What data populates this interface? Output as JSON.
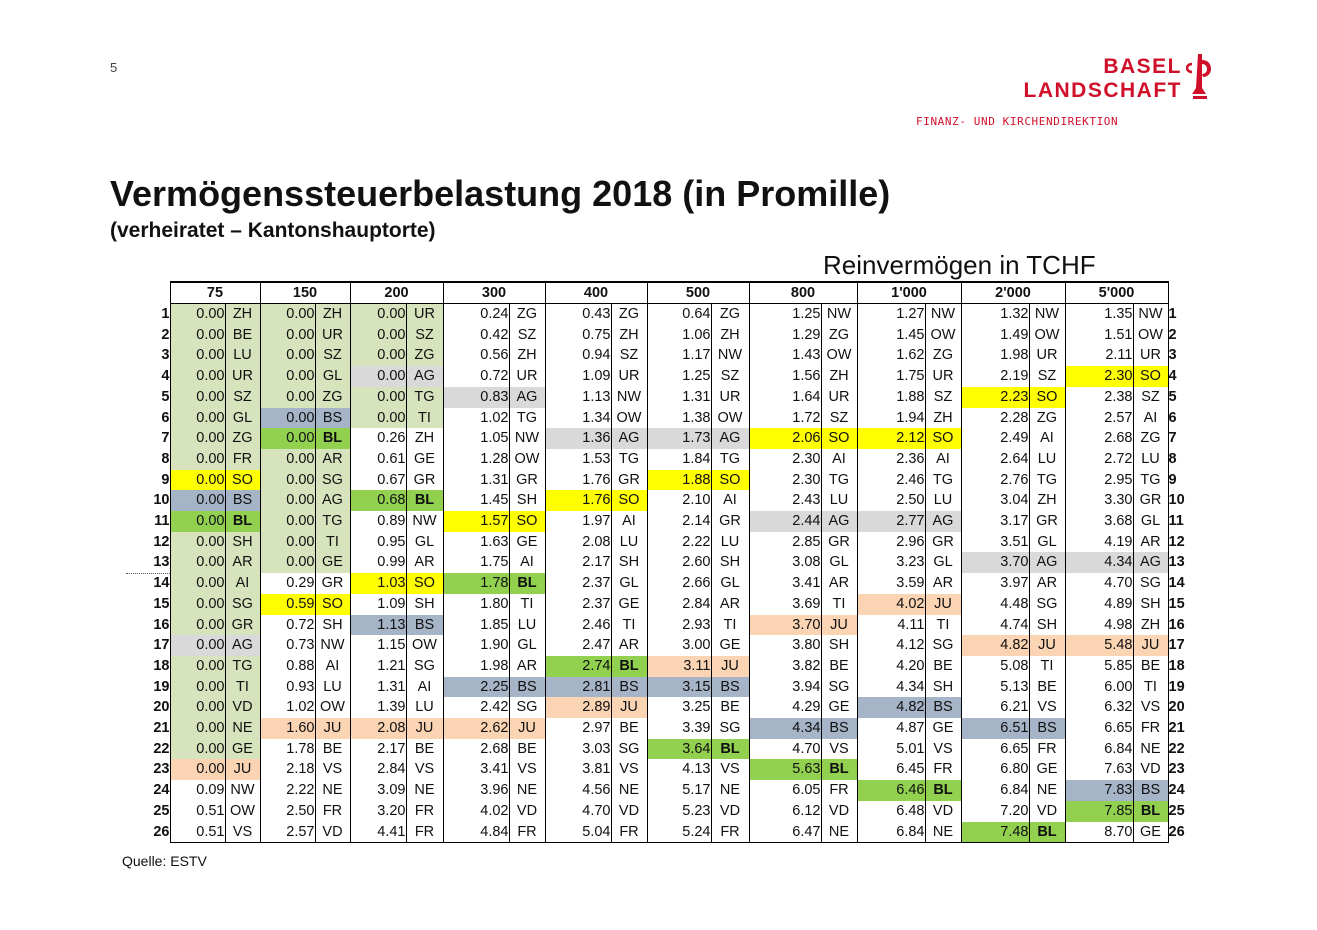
{
  "page_number": "5",
  "logo": {
    "line1": "BASEL",
    "line2": "LANDSCHAFT",
    "sub": "FINANZ- UND KIRCHENDIREKTION"
  },
  "title": "Vermögenssteuerbelastung 2018 (in Promille)",
  "subtitle": "(verheiratet – Kantonshauptorte)",
  "column_group_label": "Reinvermögen in TCHF",
  "source": "Quelle: ESTV",
  "colors": {
    "green_light": "#d6e3bc",
    "green": "#92d050",
    "grey": "#d9d9d9",
    "blue_grey": "#a6b4c8",
    "yellow": "#ffff00",
    "orange": "#fbd4b4",
    "brand_red": "#d0102a"
  },
  "chart_data": {
    "type": "table",
    "columns": [
      "75",
      "150",
      "200",
      "300",
      "400",
      "500",
      "800",
      "1'000",
      "2'000",
      "5'000"
    ],
    "rows": [
      [
        [
          "0.00",
          "ZH",
          "gl"
        ],
        [
          "0.00",
          "ZH",
          "gl"
        ],
        [
          "0.00",
          "UR",
          "gl"
        ],
        [
          "0.24",
          "ZG",
          ""
        ],
        [
          "0.43",
          "ZG",
          ""
        ],
        [
          "0.64",
          "ZG",
          ""
        ],
        [
          "1.25",
          "NW",
          ""
        ],
        [
          "1.27",
          "NW",
          ""
        ],
        [
          "1.32",
          "NW",
          ""
        ],
        [
          "1.35",
          "NW",
          ""
        ]
      ],
      [
        [
          "0.00",
          "BE",
          "gl"
        ],
        [
          "0.00",
          "UR",
          "gl"
        ],
        [
          "0.00",
          "SZ",
          "gl"
        ],
        [
          "0.42",
          "SZ",
          ""
        ],
        [
          "0.75",
          "ZH",
          ""
        ],
        [
          "1.06",
          "ZH",
          ""
        ],
        [
          "1.29",
          "ZG",
          ""
        ],
        [
          "1.45",
          "OW",
          ""
        ],
        [
          "1.49",
          "OW",
          ""
        ],
        [
          "1.51",
          "OW",
          ""
        ]
      ],
      [
        [
          "0.00",
          "LU",
          "gl"
        ],
        [
          "0.00",
          "SZ",
          "gl"
        ],
        [
          "0.00",
          "ZG",
          "gl"
        ],
        [
          "0.56",
          "ZH",
          ""
        ],
        [
          "0.94",
          "SZ",
          ""
        ],
        [
          "1.17",
          "NW",
          ""
        ],
        [
          "1.43",
          "OW",
          ""
        ],
        [
          "1.62",
          "ZG",
          ""
        ],
        [
          "1.98",
          "UR",
          ""
        ],
        [
          "2.11",
          "UR",
          ""
        ]
      ],
      [
        [
          "0.00",
          "UR",
          "gl"
        ],
        [
          "0.00",
          "GL",
          "gl"
        ],
        [
          "0.00",
          "AG",
          "gr"
        ],
        [
          "0.72",
          "UR",
          ""
        ],
        [
          "1.09",
          "UR",
          ""
        ],
        [
          "1.25",
          "SZ",
          ""
        ],
        [
          "1.56",
          "ZH",
          ""
        ],
        [
          "1.75",
          "UR",
          ""
        ],
        [
          "2.19",
          "SZ",
          ""
        ],
        [
          "2.30",
          "SO",
          "y"
        ]
      ],
      [
        [
          "0.00",
          "SZ",
          "gl"
        ],
        [
          "0.00",
          "ZG",
          "gl"
        ],
        [
          "0.00",
          "TG",
          "gl"
        ],
        [
          "0.83",
          "AG",
          "gr"
        ],
        [
          "1.13",
          "NW",
          ""
        ],
        [
          "1.31",
          "UR",
          ""
        ],
        [
          "1.64",
          "UR",
          ""
        ],
        [
          "1.88",
          "SZ",
          ""
        ],
        [
          "2.23",
          "SO",
          "y"
        ],
        [
          "2.38",
          "SZ",
          ""
        ]
      ],
      [
        [
          "0.00",
          "GL",
          "gl"
        ],
        [
          "0.00",
          "BS",
          "b"
        ],
        [
          "0.00",
          "TI",
          "gl"
        ],
        [
          "1.02",
          "TG",
          ""
        ],
        [
          "1.34",
          "OW",
          ""
        ],
        [
          "1.38",
          "OW",
          ""
        ],
        [
          "1.72",
          "SZ",
          ""
        ],
        [
          "1.94",
          "ZH",
          ""
        ],
        [
          "2.28",
          "ZG",
          ""
        ],
        [
          "2.57",
          "AI",
          ""
        ]
      ],
      [
        [
          "0.00",
          "ZG",
          "gl"
        ],
        [
          "0.00",
          "BL",
          "g"
        ],
        [
          "0.26",
          "ZH",
          ""
        ],
        [
          "1.05",
          "NW",
          ""
        ],
        [
          "1.36",
          "AG",
          "gr"
        ],
        [
          "1.73",
          "AG",
          "gr"
        ],
        [
          "2.06",
          "SO",
          "y"
        ],
        [
          "2.12",
          "SO",
          "y"
        ],
        [
          "2.49",
          "AI",
          ""
        ],
        [
          "2.68",
          "ZG",
          ""
        ]
      ],
      [
        [
          "0.00",
          "FR",
          "gl"
        ],
        [
          "0.00",
          "AR",
          "gl"
        ],
        [
          "0.61",
          "GE",
          ""
        ],
        [
          "1.28",
          "OW",
          ""
        ],
        [
          "1.53",
          "TG",
          ""
        ],
        [
          "1.84",
          "TG",
          ""
        ],
        [
          "2.30",
          "AI",
          ""
        ],
        [
          "2.36",
          "AI",
          ""
        ],
        [
          "2.64",
          "LU",
          ""
        ],
        [
          "2.72",
          "LU",
          ""
        ]
      ],
      [
        [
          "0.00",
          "SO",
          "y"
        ],
        [
          "0.00",
          "SG",
          "gl"
        ],
        [
          "0.67",
          "GR",
          ""
        ],
        [
          "1.31",
          "GR",
          ""
        ],
        [
          "1.76",
          "GR",
          ""
        ],
        [
          "1.88",
          "SO",
          "y"
        ],
        [
          "2.30",
          "TG",
          ""
        ],
        [
          "2.46",
          "TG",
          ""
        ],
        [
          "2.76",
          "TG",
          ""
        ],
        [
          "2.95",
          "TG",
          ""
        ]
      ],
      [
        [
          "0.00",
          "BS",
          "b"
        ],
        [
          "0.00",
          "AG",
          "gl"
        ],
        [
          "0.68",
          "BL",
          "g"
        ],
        [
          "1.45",
          "SH",
          ""
        ],
        [
          "1.76",
          "SO",
          "y"
        ],
        [
          "2.10",
          "AI",
          ""
        ],
        [
          "2.43",
          "LU",
          ""
        ],
        [
          "2.50",
          "LU",
          ""
        ],
        [
          "3.04",
          "ZH",
          ""
        ],
        [
          "3.30",
          "GR",
          ""
        ]
      ],
      [
        [
          "0.00",
          "BL",
          "g"
        ],
        [
          "0.00",
          "TG",
          "gl"
        ],
        [
          "0.89",
          "NW",
          ""
        ],
        [
          "1.57",
          "SO",
          "y"
        ],
        [
          "1.97",
          "AI",
          ""
        ],
        [
          "2.14",
          "GR",
          ""
        ],
        [
          "2.44",
          "AG",
          "gr"
        ],
        [
          "2.77",
          "AG",
          "gr"
        ],
        [
          "3.17",
          "GR",
          ""
        ],
        [
          "3.68",
          "GL",
          ""
        ]
      ],
      [
        [
          "0.00",
          "SH",
          "gl"
        ],
        [
          "0.00",
          "TI",
          "gl"
        ],
        [
          "0.95",
          "GL",
          ""
        ],
        [
          "1.63",
          "GE",
          ""
        ],
        [
          "2.08",
          "LU",
          ""
        ],
        [
          "2.22",
          "LU",
          ""
        ],
        [
          "2.85",
          "GR",
          ""
        ],
        [
          "2.96",
          "GR",
          ""
        ],
        [
          "3.51",
          "GL",
          ""
        ],
        [
          "4.19",
          "AR",
          ""
        ]
      ],
      [
        [
          "0.00",
          "AR",
          "gl"
        ],
        [
          "0.00",
          "GE",
          "gl"
        ],
        [
          "0.99",
          "AR",
          ""
        ],
        [
          "1.75",
          "AI",
          ""
        ],
        [
          "2.17",
          "SH",
          ""
        ],
        [
          "2.60",
          "SH",
          ""
        ],
        [
          "3.08",
          "GL",
          ""
        ],
        [
          "3.23",
          "GL",
          ""
        ],
        [
          "3.70",
          "AG",
          "gr"
        ],
        [
          "4.34",
          "AG",
          "gr"
        ]
      ],
      [
        [
          "0.00",
          "AI",
          "gl"
        ],
        [
          "0.29",
          "GR",
          ""
        ],
        [
          "1.03",
          "SO",
          "y"
        ],
        [
          "1.78",
          "BL",
          "g"
        ],
        [
          "2.37",
          "GL",
          ""
        ],
        [
          "2.66",
          "GL",
          ""
        ],
        [
          "3.41",
          "AR",
          ""
        ],
        [
          "3.59",
          "AR",
          ""
        ],
        [
          "3.97",
          "AR",
          ""
        ],
        [
          "4.70",
          "SG",
          ""
        ]
      ],
      [
        [
          "0.00",
          "SG",
          "gl"
        ],
        [
          "0.59",
          "SO",
          "y"
        ],
        [
          "1.09",
          "SH",
          ""
        ],
        [
          "1.80",
          "TI",
          ""
        ],
        [
          "2.37",
          "GE",
          ""
        ],
        [
          "2.84",
          "AR",
          ""
        ],
        [
          "3.69",
          "TI",
          ""
        ],
        [
          "4.02",
          "JU",
          "o"
        ],
        [
          "4.48",
          "SG",
          ""
        ],
        [
          "4.89",
          "SH",
          ""
        ]
      ],
      [
        [
          "0.00",
          "GR",
          "gl"
        ],
        [
          "0.72",
          "SH",
          ""
        ],
        [
          "1.13",
          "BS",
          "b"
        ],
        [
          "1.85",
          "LU",
          ""
        ],
        [
          "2.46",
          "TI",
          ""
        ],
        [
          "2.93",
          "TI",
          ""
        ],
        [
          "3.70",
          "JU",
          "o"
        ],
        [
          "4.11",
          "TI",
          ""
        ],
        [
          "4.74",
          "SH",
          ""
        ],
        [
          "4.98",
          "ZH",
          ""
        ]
      ],
      [
        [
          "0.00",
          "AG",
          "gr"
        ],
        [
          "0.73",
          "NW",
          ""
        ],
        [
          "1.15",
          "OW",
          ""
        ],
        [
          "1.90",
          "GL",
          ""
        ],
        [
          "2.47",
          "AR",
          ""
        ],
        [
          "3.00",
          "GE",
          ""
        ],
        [
          "3.80",
          "SH",
          ""
        ],
        [
          "4.12",
          "SG",
          ""
        ],
        [
          "4.82",
          "JU",
          "o"
        ],
        [
          "5.48",
          "JU",
          "o"
        ]
      ],
      [
        [
          "0.00",
          "TG",
          "gl"
        ],
        [
          "0.88",
          "AI",
          ""
        ],
        [
          "1.21",
          "SG",
          ""
        ],
        [
          "1.98",
          "AR",
          ""
        ],
        [
          "2.74",
          "BL",
          "g"
        ],
        [
          "3.11",
          "JU",
          "o"
        ],
        [
          "3.82",
          "BE",
          ""
        ],
        [
          "4.20",
          "BE",
          ""
        ],
        [
          "5.08",
          "TI",
          ""
        ],
        [
          "5.85",
          "BE",
          ""
        ]
      ],
      [
        [
          "0.00",
          "TI",
          "gl"
        ],
        [
          "0.93",
          "LU",
          ""
        ],
        [
          "1.31",
          "AI",
          ""
        ],
        [
          "2.25",
          "BS",
          "b"
        ],
        [
          "2.81",
          "BS",
          "b"
        ],
        [
          "3.15",
          "BS",
          "b"
        ],
        [
          "3.94",
          "SG",
          ""
        ],
        [
          "4.34",
          "SH",
          ""
        ],
        [
          "5.13",
          "BE",
          ""
        ],
        [
          "6.00",
          "TI",
          ""
        ]
      ],
      [
        [
          "0.00",
          "VD",
          "gl"
        ],
        [
          "1.02",
          "OW",
          ""
        ],
        [
          "1.39",
          "LU",
          ""
        ],
        [
          "2.42",
          "SG",
          ""
        ],
        [
          "2.89",
          "JU",
          "o"
        ],
        [
          "3.25",
          "BE",
          ""
        ],
        [
          "4.29",
          "GE",
          ""
        ],
        [
          "4.82",
          "BS",
          "b"
        ],
        [
          "6.21",
          "VS",
          ""
        ],
        [
          "6.32",
          "VS",
          ""
        ]
      ],
      [
        [
          "0.00",
          "NE",
          "gl"
        ],
        [
          "1.60",
          "JU",
          "o"
        ],
        [
          "2.08",
          "JU",
          "o"
        ],
        [
          "2.62",
          "JU",
          "o"
        ],
        [
          "2.97",
          "BE",
          ""
        ],
        [
          "3.39",
          "SG",
          ""
        ],
        [
          "4.34",
          "BS",
          "b"
        ],
        [
          "4.87",
          "GE",
          ""
        ],
        [
          "6.51",
          "BS",
          "b"
        ],
        [
          "6.65",
          "FR",
          ""
        ]
      ],
      [
        [
          "0.00",
          "GE",
          "gl"
        ],
        [
          "1.78",
          "BE",
          ""
        ],
        [
          "2.17",
          "BE",
          ""
        ],
        [
          "2.68",
          "BE",
          ""
        ],
        [
          "3.03",
          "SG",
          ""
        ],
        [
          "3.64",
          "BL",
          "g"
        ],
        [
          "4.70",
          "VS",
          ""
        ],
        [
          "5.01",
          "VS",
          ""
        ],
        [
          "6.65",
          "FR",
          ""
        ],
        [
          "6.84",
          "NE",
          ""
        ]
      ],
      [
        [
          "0.00",
          "JU",
          "o"
        ],
        [
          "2.18",
          "VS",
          ""
        ],
        [
          "2.84",
          "VS",
          ""
        ],
        [
          "3.41",
          "VS",
          ""
        ],
        [
          "3.81",
          "VS",
          ""
        ],
        [
          "4.13",
          "VS",
          ""
        ],
        [
          "5.63",
          "BL",
          "g"
        ],
        [
          "6.45",
          "FR",
          ""
        ],
        [
          "6.80",
          "GE",
          ""
        ],
        [
          "7.63",
          "VD",
          ""
        ]
      ],
      [
        [
          "0.09",
          "NW",
          ""
        ],
        [
          "2.22",
          "NE",
          ""
        ],
        [
          "3.09",
          "NE",
          ""
        ],
        [
          "3.96",
          "NE",
          ""
        ],
        [
          "4.56",
          "NE",
          ""
        ],
        [
          "5.17",
          "NE",
          ""
        ],
        [
          "6.05",
          "FR",
          ""
        ],
        [
          "6.46",
          "BL",
          "g"
        ],
        [
          "6.84",
          "NE",
          ""
        ],
        [
          "7.83",
          "BS",
          "b"
        ]
      ],
      [
        [
          "0.51",
          "OW",
          ""
        ],
        [
          "2.50",
          "FR",
          ""
        ],
        [
          "3.20",
          "FR",
          ""
        ],
        [
          "4.02",
          "VD",
          ""
        ],
        [
          "4.70",
          "VD",
          ""
        ],
        [
          "5.23",
          "VD",
          ""
        ],
        [
          "6.12",
          "VD",
          ""
        ],
        [
          "6.48",
          "VD",
          ""
        ],
        [
          "7.20",
          "VD",
          ""
        ],
        [
          "7.85",
          "BL",
          "g"
        ]
      ],
      [
        [
          "0.51",
          "VS",
          ""
        ],
        [
          "2.57",
          "VD",
          ""
        ],
        [
          "4.41",
          "FR",
          ""
        ],
        [
          "4.84",
          "FR",
          ""
        ],
        [
          "5.04",
          "FR",
          ""
        ],
        [
          "5.24",
          "FR",
          ""
        ],
        [
          "6.47",
          "NE",
          ""
        ],
        [
          "6.84",
          "NE",
          ""
        ],
        [
          "7.48",
          "BL",
          "g"
        ],
        [
          "8.70",
          "GE",
          ""
        ]
      ]
    ]
  }
}
